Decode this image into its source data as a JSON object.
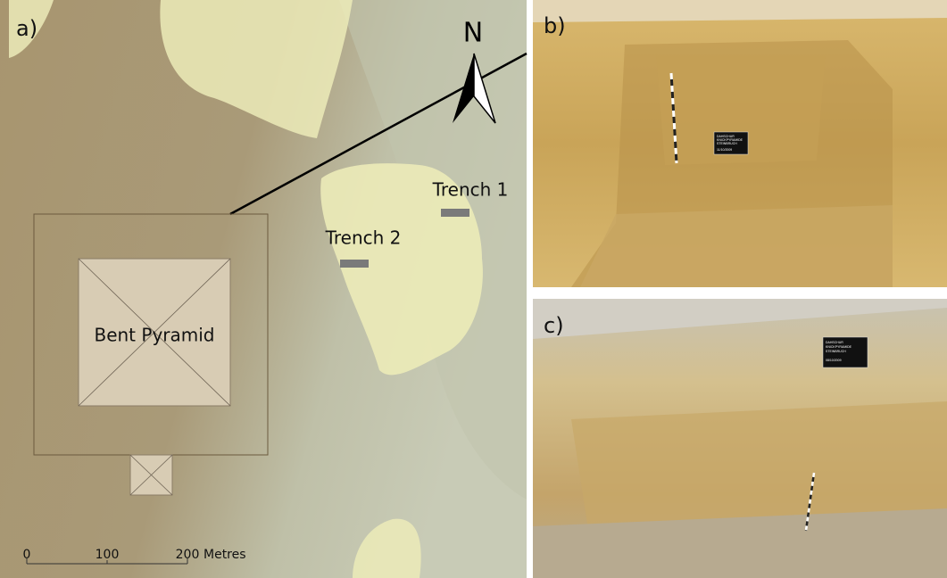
{
  "map": {
    "panel_label": "a)",
    "north": "N",
    "trench_1": "Trench 1",
    "trench_2": "Trench 2",
    "pyramid": "Bent Pyramid",
    "scale": {
      "ticks": [
        "0",
        "100",
        "200"
      ],
      "unit": "Metres"
    }
  },
  "photo_b": {
    "panel_label": "b)",
    "sign": [
      "DAHSCHUR",
      "KNICKPYRAMIDE",
      "STEINBRUCH",
      "11/10/2009"
    ]
  },
  "photo_c": {
    "panel_label": "c)",
    "sign": [
      "DAHSCHUR",
      "KNICKPYRAMIDE",
      "STEINBRUCH",
      "08/10/2009"
    ]
  }
}
